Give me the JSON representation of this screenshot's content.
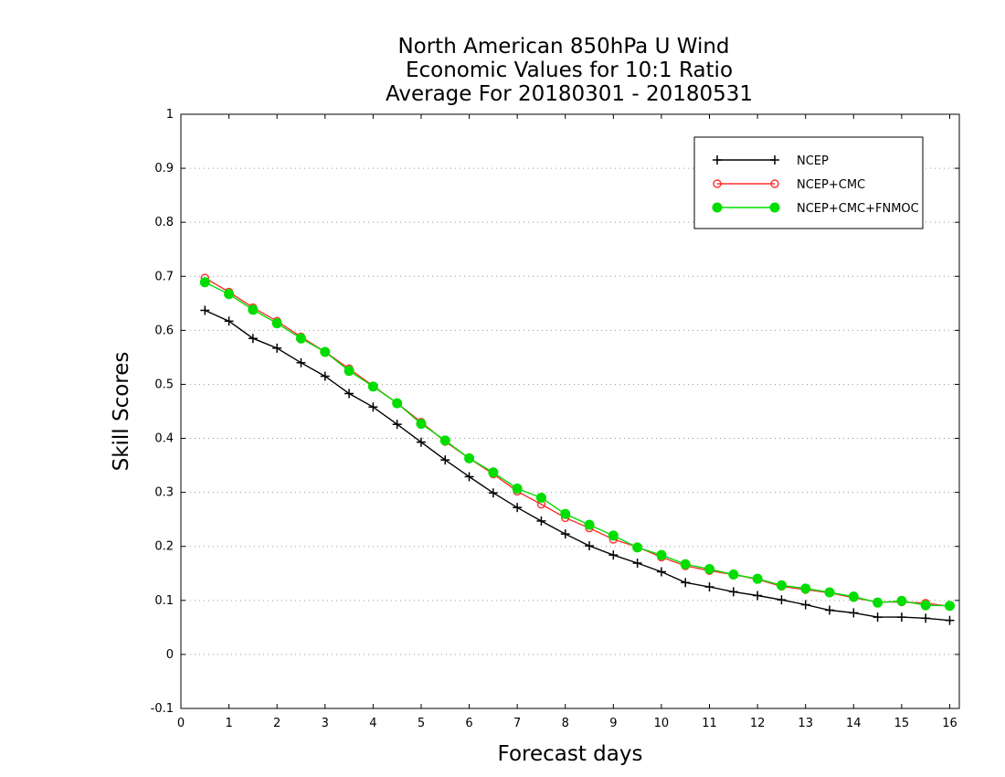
{
  "chart_data": {
    "type": "line",
    "title": [
      "North American 850hPa U Wind",
      "Economic Values for 10:1 Ratio",
      "Average For 20180301 - 20180531"
    ],
    "xlabel": "Forecast days",
    "ylabel": "Skill Scores",
    "xlim": [
      0,
      16.2
    ],
    "ylim": [
      -0.1,
      1
    ],
    "xticks": [
      0,
      1,
      2,
      3,
      4,
      5,
      6,
      7,
      8,
      9,
      10,
      11,
      12,
      13,
      14,
      15,
      16
    ],
    "yticks": [
      -0.1,
      0,
      0.1,
      0.2,
      0.3,
      0.4,
      0.5,
      0.6,
      0.7,
      0.8,
      0.9,
      1
    ],
    "ytick_labels": [
      "-0.1",
      "0",
      "0.1",
      "0.2",
      "0.3",
      "0.4",
      "0.5",
      "0.6",
      "0.7",
      "0.8",
      "0.9",
      "1"
    ],
    "grid": "horizontal-dotted",
    "legend_position": "top-right",
    "x": [
      0.5,
      1.0,
      1.5,
      2.0,
      2.5,
      3.0,
      3.5,
      4.0,
      4.5,
      5.0,
      5.5,
      6.0,
      6.5,
      7.0,
      7.5,
      8.0,
      8.5,
      9.0,
      9.5,
      10.0,
      10.5,
      11.0,
      11.5,
      12.0,
      12.5,
      13.0,
      13.5,
      14.0,
      14.5,
      15.0,
      15.5,
      16.0
    ],
    "series": [
      {
        "name": "NCEP",
        "color": "#000000",
        "marker": "plus",
        "values": [
          0.637,
          0.617,
          0.585,
          0.567,
          0.54,
          0.515,
          0.483,
          0.458,
          0.426,
          0.393,
          0.36,
          0.329,
          0.299,
          0.272,
          0.247,
          0.223,
          0.201,
          0.184,
          0.169,
          0.153,
          0.133,
          0.125,
          0.116,
          0.109,
          0.101,
          0.092,
          0.082,
          0.077,
          0.069,
          0.069,
          0.067,
          0.063
        ]
      },
      {
        "name": "NCEP+CMC",
        "color": "#ff3030",
        "marker": "open-circle",
        "values": [
          0.697,
          0.671,
          0.642,
          0.617,
          0.588,
          0.56,
          0.529,
          0.497,
          0.465,
          0.43,
          0.394,
          0.363,
          0.334,
          0.302,
          0.278,
          0.253,
          0.234,
          0.213,
          0.199,
          0.18,
          0.164,
          0.155,
          0.148,
          0.139,
          0.126,
          0.12,
          0.114,
          0.105,
          0.097,
          0.097,
          0.095,
          0.089
        ]
      },
      {
        "name": "NCEP+CMC+FNMOC",
        "color": "#00dd00",
        "marker": "filled-circle",
        "values": [
          0.689,
          0.667,
          0.638,
          0.613,
          0.585,
          0.56,
          0.525,
          0.496,
          0.465,
          0.427,
          0.396,
          0.363,
          0.337,
          0.307,
          0.29,
          0.26,
          0.24,
          0.22,
          0.198,
          0.184,
          0.167,
          0.158,
          0.148,
          0.14,
          0.128,
          0.122,
          0.115,
          0.107,
          0.096,
          0.099,
          0.091,
          0.09
        ]
      }
    ]
  }
}
